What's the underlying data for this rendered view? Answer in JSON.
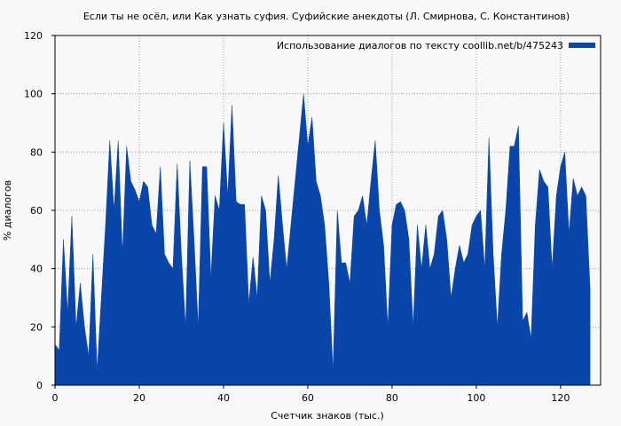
{
  "chart_data": {
    "type": "area",
    "title": "Если ты не осёл, или Как узнать суфия. Суфийские анекдоты (Л. Смирнова, С. Константинов)",
    "xlabel": "Счетчик знаков (тыс.)",
    "ylabel": "% диалогов",
    "x": [
      0,
      1,
      2,
      3,
      4,
      5,
      6,
      7,
      8,
      9,
      10,
      11,
      12,
      13,
      14,
      15,
      16,
      17,
      18,
      19,
      20,
      21,
      22,
      23,
      24,
      25,
      26,
      27,
      28,
      29,
      30,
      31,
      32,
      33,
      34,
      35,
      36,
      37,
      38,
      39,
      40,
      41,
      42,
      43,
      44,
      45,
      46,
      47,
      48,
      49,
      50,
      51,
      52,
      53,
      54,
      55,
      56,
      57,
      58,
      59,
      60,
      61,
      62,
      63,
      64,
      65,
      66,
      67,
      68,
      69,
      70,
      71,
      72,
      73,
      74,
      75,
      76,
      77,
      78,
      79,
      80,
      81,
      82,
      83,
      84,
      85,
      86,
      87,
      88,
      89,
      90,
      91,
      92,
      93,
      94,
      95,
      96,
      97,
      98,
      99,
      100,
      101,
      102,
      103,
      104,
      105,
      106,
      107,
      108,
      109,
      110,
      111,
      112,
      113,
      114,
      115,
      116,
      117,
      118,
      119,
      120,
      121,
      122,
      123,
      124,
      125,
      126,
      127
    ],
    "series": [
      {
        "name": "Использование диалогов по тексту  coollib.net/b/475243",
        "color": "#0a46aa",
        "values": [
          14,
          12,
          50,
          25,
          58,
          20,
          35,
          20,
          10,
          45,
          5,
          30,
          55,
          84,
          60,
          84,
          45,
          82,
          70,
          67,
          63,
          70,
          68,
          55,
          52,
          75,
          45,
          42,
          40,
          76,
          45,
          20,
          77,
          50,
          20,
          75,
          75,
          37,
          65,
          60,
          90,
          65,
          96,
          63,
          62,
          62,
          28,
          44,
          30,
          65,
          60,
          35,
          50,
          72,
          55,
          40,
          55,
          70,
          85,
          100,
          82,
          92,
          70,
          65,
          55,
          35,
          5,
          60,
          42,
          42,
          35,
          58,
          60,
          65,
          55,
          70,
          84,
          60,
          48,
          20,
          55,
          62,
          63,
          60,
          50,
          20,
          55,
          40,
          55,
          40,
          45,
          58,
          60,
          50,
          30,
          40,
          48,
          42,
          45,
          55,
          58,
          60,
          40,
          85,
          45,
          20,
          45,
          60,
          82,
          82,
          89,
          22,
          25,
          16,
          55,
          74,
          70,
          68,
          40,
          65,
          75,
          80,
          52,
          71,
          65,
          68,
          65,
          33
        ]
      }
    ],
    "xlim": [
      0,
      129.5
    ],
    "ylim": [
      0,
      120
    ],
    "xticks": [
      0,
      20,
      40,
      60,
      80,
      100,
      120
    ],
    "yticks": [
      0,
      20,
      40,
      60,
      80,
      100,
      120
    ],
    "grid": true,
    "legend": "top-right"
  }
}
